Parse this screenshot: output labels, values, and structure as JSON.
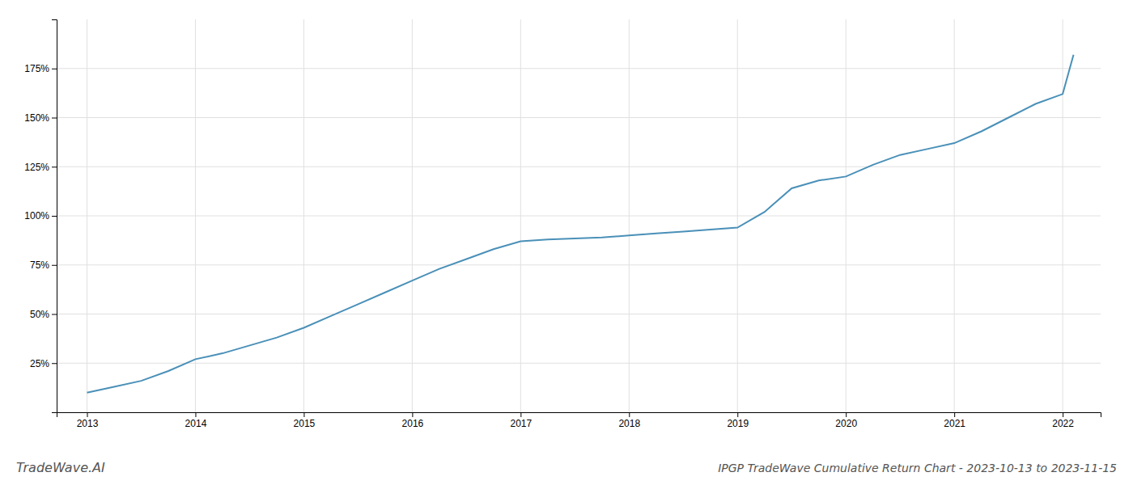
{
  "chart_data": {
    "type": "line",
    "title": "IPGP TradeWave Cumulative Return Chart - 2023-10-13 to 2023-11-15",
    "annotations": [
      "TradeWave.AI"
    ],
    "x": [
      2013.0,
      2013.25,
      2013.5,
      2013.75,
      2014.0,
      2014.25,
      2014.5,
      2014.75,
      2015.0,
      2015.25,
      2015.5,
      2015.75,
      2016.0,
      2016.25,
      2016.5,
      2016.75,
      2017.0,
      2017.25,
      2017.5,
      2017.75,
      2018.0,
      2018.25,
      2018.5,
      2018.75,
      2019.0,
      2019.25,
      2019.5,
      2019.75,
      2020.0,
      2020.25,
      2020.5,
      2020.75,
      2021.0,
      2021.25,
      2021.5,
      2021.75,
      2022.0,
      2022.1
    ],
    "values": [
      10,
      13,
      16,
      21,
      27,
      30,
      34,
      38,
      43,
      49,
      55,
      61,
      67,
      73,
      78,
      83,
      87,
      88,
      88.5,
      89,
      90,
      91,
      92,
      93,
      94,
      102,
      114,
      118,
      120,
      126,
      131,
      134,
      137,
      143,
      150,
      157,
      162,
      182
    ],
    "color": "#4a90b8",
    "xlim": [
      2012.72,
      2022.35
    ],
    "xticks": [
      2013,
      2014,
      2015,
      2016,
      2017,
      2018,
      2019,
      2020,
      2021,
      2022
    ],
    "ylim": [
      0,
      200
    ],
    "yticks": [
      {
        "value": 25,
        "label": "25%"
      },
      {
        "value": 50,
        "label": "50%"
      },
      {
        "value": 75,
        "label": "75%"
      },
      {
        "value": 100,
        "label": "100%"
      },
      {
        "value": 125,
        "label": "125%"
      },
      {
        "value": 150,
        "label": "150%"
      },
      {
        "value": 175,
        "label": "175%"
      }
    ],
    "grid": true
  }
}
